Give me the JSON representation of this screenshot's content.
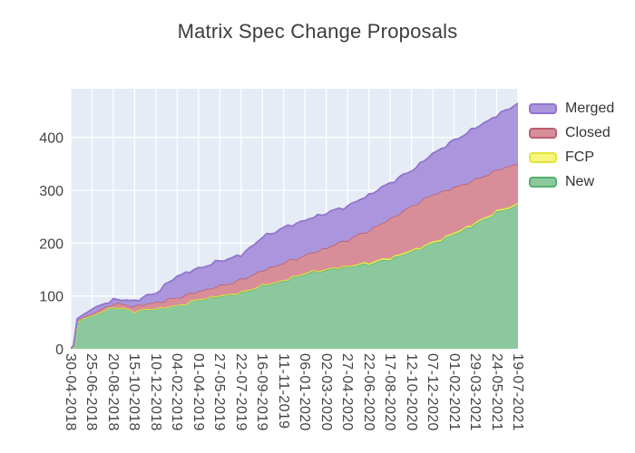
{
  "title": "Matrix Spec Change Proposals",
  "colors": {
    "figure_background": "#ffffff",
    "plot_background": "#e5ecf6",
    "grid": "#ffffff",
    "title_text": "#3d3d3d",
    "tick_text": "#444444",
    "legend_text": "#333333"
  },
  "legend": {
    "position": "top-right",
    "items": [
      "Merged",
      "Closed",
      "FCP",
      "New"
    ]
  },
  "chart_data": {
    "type": "area",
    "stacked": true,
    "title": "Matrix Spec Change Proposals",
    "xlabel": "",
    "ylabel": "",
    "grid": true,
    "legend_position": "top-right",
    "y_ticks": [
      0,
      100,
      200,
      300,
      400
    ],
    "ylim": [
      0,
      492
    ],
    "categories": [
      "30-04-2018",
      "25-06-2018",
      "20-08-2018",
      "15-10-2018",
      "10-12-2018",
      "04-02-2019",
      "01-04-2019",
      "27-05-2019",
      "22-07-2019",
      "16-09-2019",
      "11-11-2019",
      "06-01-2020",
      "02-03-2020",
      "27-04-2020",
      "22-06-2020",
      "17-08-2020",
      "12-10-2020",
      "07-12-2020",
      "01-02-2021",
      "29-03-2021",
      "24-05-2021",
      "19-07-2021"
    ],
    "stack_order_bottom_to_top": [
      "New",
      "FCP",
      "Closed",
      "Merged"
    ],
    "series": [
      {
        "name": "Merged",
        "line_color": "#9075ce",
        "fill_color": "#ab96dd",
        "values": [
          0,
          9,
          7,
          10,
          18,
          41,
          43,
          47,
          46,
          63,
          66,
          66,
          66,
          63,
          67,
          68,
          67,
          77,
          89,
          98,
          103,
          114
        ]
      },
      {
        "name": "Closed",
        "line_color": "#bc5f6e",
        "fill_color": "#d78e99",
        "values": [
          0,
          3,
          6,
          9,
          11,
          15,
          15,
          18,
          24,
          27,
          33,
          33,
          40,
          50,
          60,
          73,
          83,
          90,
          85,
          81,
          77,
          76
        ]
      },
      {
        "name": "FCP",
        "line_color": "#e3e33c",
        "fill_color": "#f6f67c",
        "values": [
          0,
          1,
          1,
          1,
          1,
          1,
          1,
          2,
          2,
          2,
          2,
          2,
          2,
          2,
          3,
          3,
          3,
          3,
          3,
          3,
          3,
          3
        ]
      },
      {
        "name": "New",
        "line_color": "#55b06e",
        "fill_color": "#8cc89d",
        "values": [
          0,
          62,
          79,
          71,
          76,
          81,
          93,
          99,
          105,
          119,
          128,
          142,
          149,
          155,
          161,
          170,
          184,
          199,
          217,
          236,
          258,
          272
        ]
      }
    ],
    "initial_ramp": [
      {
        "t": 0.13,
        "New": 4,
        "FCP": 0,
        "Closed": 1,
        "Merged": 1
      },
      {
        "t": 0.3,
        "New": 50,
        "FCP": 1,
        "Closed": 2,
        "Merged": 4
      },
      {
        "t": 0.6,
        "New": 57,
        "FCP": 1,
        "Closed": 2,
        "Merged": 5
      }
    ]
  }
}
